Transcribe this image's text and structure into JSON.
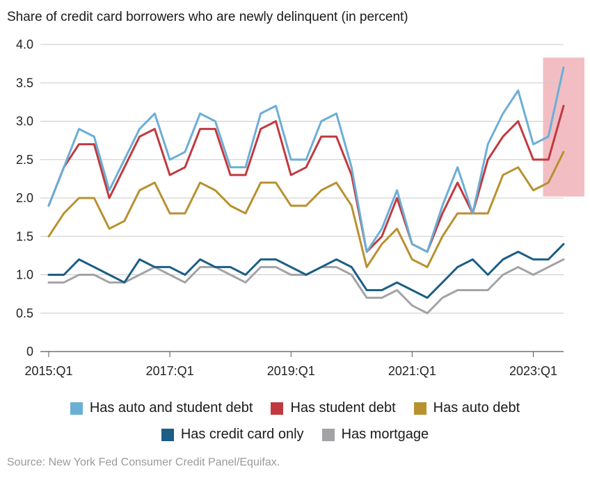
{
  "chart_data": {
    "type": "line",
    "title": "Share of credit card borrowers who are newly delinquent (in percent)",
    "xlabel": "",
    "ylabel": "",
    "ylim": [
      0,
      4.0
    ],
    "yticks": [
      "0",
      "0.5",
      "1.0",
      "1.5",
      "2.0",
      "2.5",
      "3.0",
      "3.5",
      "4.0"
    ],
    "xtick_labels": [
      {
        "index": 0,
        "label": "2015:Q1"
      },
      {
        "index": 8,
        "label": "2017:Q1"
      },
      {
        "index": 16,
        "label": "2019:Q1"
      },
      {
        "index": 24,
        "label": "2021:Q1"
      },
      {
        "index": 32,
        "label": "2023:Q1"
      }
    ],
    "x": [
      "2015:Q1",
      "2015:Q2",
      "2015:Q3",
      "2015:Q4",
      "2016:Q1",
      "2016:Q2",
      "2016:Q3",
      "2016:Q4",
      "2017:Q1",
      "2017:Q2",
      "2017:Q3",
      "2017:Q4",
      "2018:Q1",
      "2018:Q2",
      "2018:Q3",
      "2018:Q4",
      "2019:Q1",
      "2019:Q2",
      "2019:Q3",
      "2019:Q4",
      "2020:Q1",
      "2020:Q2",
      "2020:Q3",
      "2020:Q4",
      "2021:Q1",
      "2021:Q2",
      "2021:Q3",
      "2021:Q4",
      "2022:Q1",
      "2022:Q2",
      "2022:Q3",
      "2022:Q4",
      "2023:Q1",
      "2023:Q2",
      "2023:Q3"
    ],
    "series": [
      {
        "name": "Has auto and student debt",
        "color": "#6baed6",
        "values": [
          1.9,
          2.4,
          2.9,
          2.8,
          2.1,
          2.5,
          2.9,
          3.1,
          2.5,
          2.6,
          3.1,
          3.0,
          2.4,
          2.4,
          3.1,
          3.2,
          2.5,
          2.5,
          3.0,
          3.1,
          2.4,
          1.3,
          1.6,
          2.1,
          1.4,
          1.3,
          1.9,
          2.4,
          1.8,
          2.7,
          3.1,
          3.4,
          2.7,
          2.8,
          3.7
        ]
      },
      {
        "name": "Has student debt",
        "color": "#c1393f",
        "values": [
          1.9,
          2.4,
          2.7,
          2.7,
          2.0,
          2.4,
          2.8,
          2.9,
          2.3,
          2.4,
          2.9,
          2.9,
          2.3,
          2.3,
          2.9,
          3.0,
          2.3,
          2.4,
          2.8,
          2.8,
          2.3,
          1.3,
          1.5,
          2.0,
          1.4,
          1.3,
          1.8,
          2.2,
          1.8,
          2.5,
          2.8,
          3.0,
          2.5,
          2.5,
          3.2
        ]
      },
      {
        "name": "Has auto debt",
        "color": "#b8912f",
        "values": [
          1.5,
          1.8,
          2.0,
          2.0,
          1.6,
          1.7,
          2.1,
          2.2,
          1.8,
          1.8,
          2.2,
          2.1,
          1.9,
          1.8,
          2.2,
          2.2,
          1.9,
          1.9,
          2.1,
          2.2,
          1.9,
          1.1,
          1.4,
          1.6,
          1.2,
          1.1,
          1.5,
          1.8,
          1.8,
          1.8,
          2.3,
          2.4,
          2.1,
          2.2,
          2.6
        ]
      },
      {
        "name": "Has credit card only",
        "color": "#1b5e86",
        "values": [
          1.0,
          1.0,
          1.2,
          1.1,
          1.0,
          0.9,
          1.2,
          1.1,
          1.1,
          1.0,
          1.2,
          1.1,
          1.1,
          1.0,
          1.2,
          1.2,
          1.1,
          1.0,
          1.1,
          1.2,
          1.1,
          0.8,
          0.8,
          0.9,
          0.8,
          0.7,
          0.9,
          1.1,
          1.2,
          1.0,
          1.2,
          1.3,
          1.2,
          1.2,
          1.4
        ]
      },
      {
        "name": "Has mortgage",
        "color": "#a3a3a6",
        "values": [
          0.9,
          0.9,
          1.0,
          1.0,
          0.9,
          0.9,
          1.0,
          1.1,
          1.0,
          0.9,
          1.1,
          1.1,
          1.0,
          0.9,
          1.1,
          1.1,
          1.0,
          1.0,
          1.1,
          1.1,
          1.0,
          0.7,
          0.7,
          0.8,
          0.6,
          0.5,
          0.7,
          0.8,
          0.8,
          0.8,
          1.0,
          1.1,
          1.0,
          1.1,
          1.2
        ]
      }
    ],
    "highlight": {
      "x_from": "2023:Q1",
      "x_to": "2023:Q3",
      "color": "#f0b3b8"
    },
    "grid": "horizontal",
    "legend_position": "bottom",
    "source": "Source: New York Fed Consumer Credit Panel/Equifax."
  }
}
